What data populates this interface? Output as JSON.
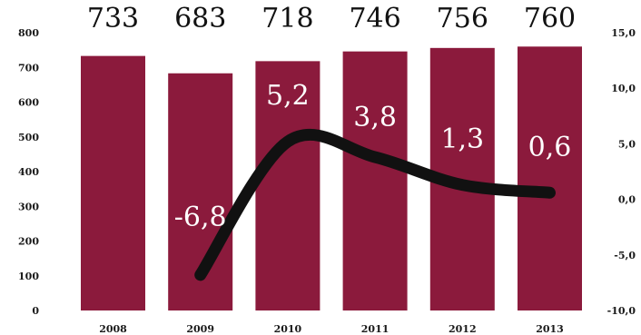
{
  "chart_data": {
    "type": "bar",
    "categories": [
      "2008",
      "2009",
      "2010",
      "2011",
      "2012",
      "2013"
    ],
    "series": [
      {
        "type": "bar",
        "axis": "left",
        "values": [
          733,
          683,
          718,
          746,
          756,
          760
        ],
        "value_labels": [
          "733",
          "683",
          "718",
          "746",
          "756",
          "760"
        ]
      },
      {
        "type": "line",
        "axis": "right",
        "values": [
          null,
          -6.8,
          5.2,
          3.8,
          1.3,
          0.6
        ],
        "value_labels": [
          "",
          "-6,8",
          "5,2",
          "3,8",
          "1,3",
          "0,6"
        ]
      }
    ],
    "left_axis": {
      "ylim": [
        0,
        800
      ],
      "ticks": [
        0,
        100,
        200,
        300,
        400,
        500,
        600,
        700,
        800
      ],
      "tick_labels": [
        "0",
        "100",
        "200",
        "300",
        "400",
        "500",
        "600",
        "700",
        "800"
      ]
    },
    "right_axis": {
      "ylim": [
        -10,
        15
      ],
      "ticks": [
        -10,
        -5,
        0,
        5,
        10,
        15
      ],
      "tick_labels": [
        "-10,0",
        "-5,0",
        "0,0",
        "5,0",
        "10,0",
        "15,0"
      ]
    },
    "grid": false,
    "legend": "none",
    "colors": {
      "bar": "#8b1a3c",
      "line": "#111111",
      "bar_label": "#111111",
      "line_label": "#ffffff"
    }
  }
}
